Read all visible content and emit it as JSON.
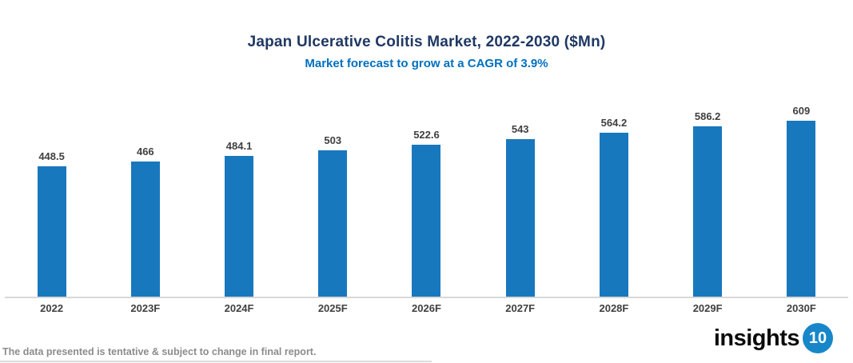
{
  "chart_data": {
    "type": "bar",
    "title": "Japan Ulcerative Colitis Market, 2022-2030 ($Mn)",
    "subtitle": "Market forecast to grow at a CAGR of 3.9%",
    "categories": [
      "2022",
      "2023F",
      "2024F",
      "2025F",
      "2026F",
      "2027F",
      "2028F",
      "2029F",
      "2030F"
    ],
    "values": [
      448.5,
      466,
      484.1,
      503,
      522.6,
      543,
      564.2,
      586.2,
      609
    ],
    "xlabel": "",
    "ylabel": "",
    "ylim": [
      0,
      660
    ],
    "grid": false,
    "legend": false,
    "data_labels": true,
    "bar_color": "#1878BE",
    "title_color": "#1F3864",
    "subtitle_color": "#0070C0",
    "value_label_color": "#404040",
    "axis_line_color": "#D8D8D8"
  },
  "footer": {
    "disclaimer": "The data presented is tentative & subject to change in final report."
  },
  "logo": {
    "text": "insights",
    "badge": "10",
    "badge_color": "#1787C9"
  }
}
